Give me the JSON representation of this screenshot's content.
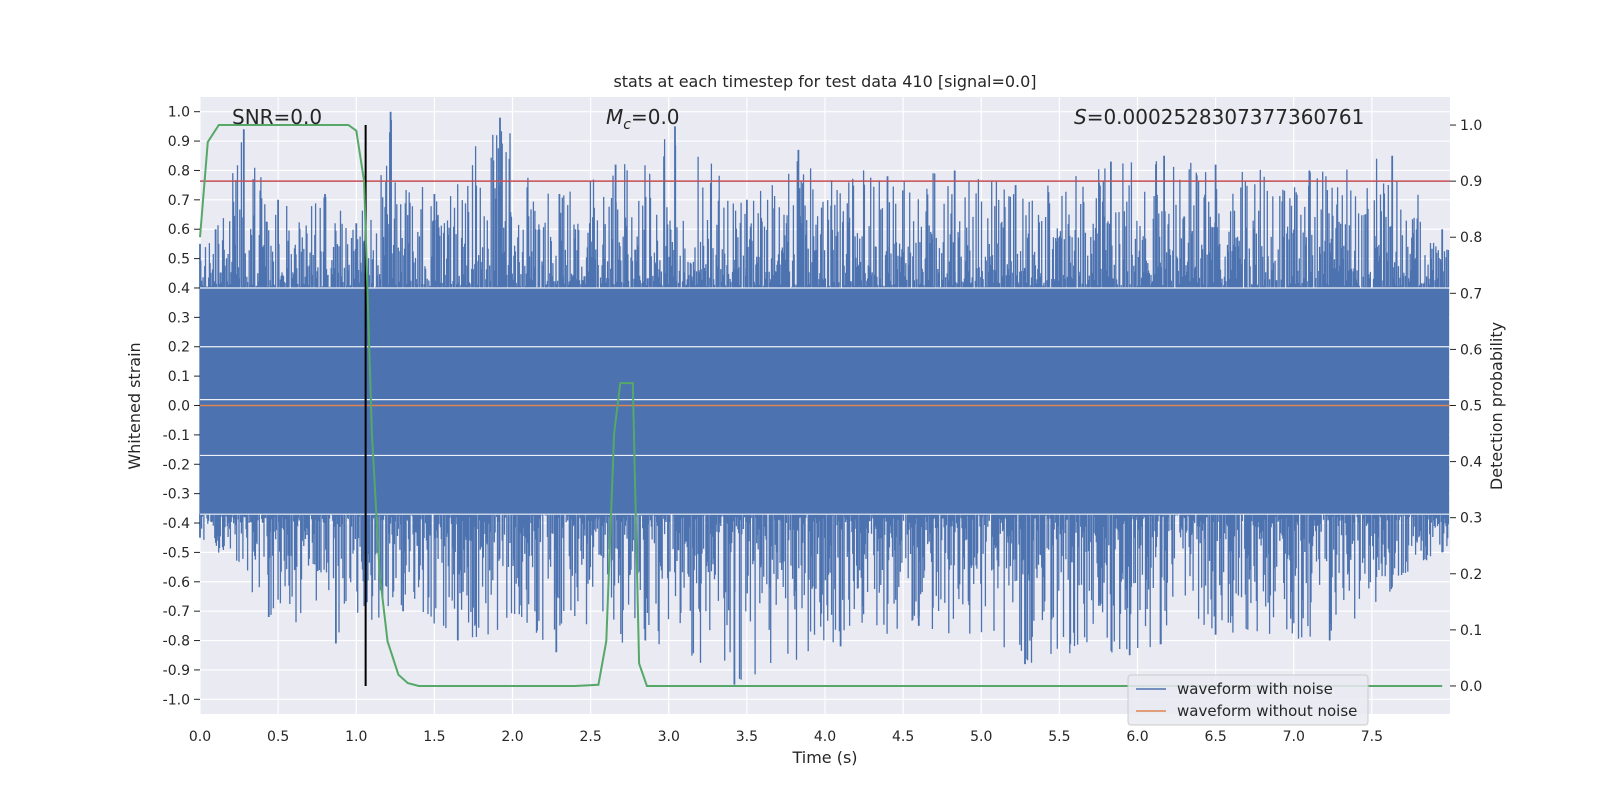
{
  "chart_data": {
    "type": "line",
    "title": "stats at each timestep for test data 410 [signal=0.0]",
    "xlabel": "Time (s)",
    "ylabel": "Whitened strain",
    "y2label": "Detection probability",
    "xlim": [
      0.0,
      8.0
    ],
    "ylim": [
      -1.05,
      1.05
    ],
    "y2lim": [
      -0.05,
      1.05
    ],
    "xticks": [
      0.0,
      0.5,
      1.0,
      1.5,
      2.0,
      2.5,
      3.0,
      3.5,
      4.0,
      4.5,
      5.0,
      5.5,
      6.0,
      6.5,
      7.0,
      7.5
    ],
    "xtick_labels": [
      "0.0",
      "0.5",
      "1.0",
      "1.5",
      "2.0",
      "2.5",
      "3.0",
      "3.5",
      "4.0",
      "4.5",
      "5.0",
      "5.5",
      "6.0",
      "6.5",
      "7.0",
      "7.5"
    ],
    "yticks": [
      1.0,
      0.9,
      0.8,
      0.7,
      0.6,
      0.5,
      0.4,
      0.3,
      0.2,
      0.1,
      0.0,
      -0.1,
      -0.2,
      -0.3,
      -0.4,
      -0.5,
      -0.6,
      -0.7,
      -0.8,
      -0.9,
      -1.0
    ],
    "ytick_labels": [
      "1.0",
      "0.9",
      "0.8",
      "0.7",
      "0.6",
      "0.5",
      "0.4",
      "0.3",
      "0.2",
      "0.1",
      "0.0",
      "-0.1",
      "-0.2",
      "-0.3",
      "-0.4",
      "-0.5",
      "-0.6",
      "-0.7",
      "-0.8",
      "-0.9",
      "-1.0"
    ],
    "y2ticks": [
      1.0,
      0.9,
      0.8,
      0.7,
      0.6,
      0.5,
      0.4,
      0.3,
      0.2,
      0.1,
      0.0
    ],
    "y2tick_labels": [
      "1.0",
      "0.9",
      "0.8",
      "0.7",
      "0.6",
      "0.5",
      "0.4",
      "0.3",
      "0.2",
      "0.1",
      "0.0"
    ],
    "grid": true,
    "annotations": {
      "snr": "SNR=0.0",
      "mc_symbol": "M",
      "mc_subscript": "c",
      "mc_value": "=0.0",
      "s_symbol": "S",
      "s_value": "=0.0002528307377360761"
    },
    "series": [
      {
        "name": "waveform with noise",
        "axis": "left",
        "color": "#4c72b0",
        "description_kind": "noise",
        "envelope_upper": [
          [
            0.0,
            0.55
          ],
          [
            0.1,
            0.6
          ],
          [
            0.28,
            0.94
          ],
          [
            0.5,
            0.7
          ],
          [
            0.8,
            0.72
          ],
          [
            1.0,
            0.62
          ],
          [
            1.22,
            1.0
          ],
          [
            1.5,
            0.72
          ],
          [
            1.92,
            0.98
          ],
          [
            2.3,
            0.72
          ],
          [
            2.66,
            0.82
          ],
          [
            3.04,
            0.95
          ],
          [
            3.5,
            0.7
          ],
          [
            3.83,
            0.87
          ],
          [
            4.4,
            0.78
          ],
          [
            4.83,
            0.8
          ],
          [
            5.22,
            0.75
          ],
          [
            5.83,
            0.83
          ],
          [
            6.17,
            0.85
          ],
          [
            6.5,
            0.82
          ],
          [
            7.1,
            0.8
          ],
          [
            7.63,
            0.85
          ],
          [
            7.95,
            0.6
          ]
        ],
        "envelope_lower": [
          [
            0.0,
            -0.45
          ],
          [
            0.44,
            -0.72
          ],
          [
            0.87,
            -0.81
          ],
          [
            1.3,
            -0.7
          ],
          [
            1.65,
            -0.8
          ],
          [
            2.28,
            -0.84
          ],
          [
            2.85,
            -0.8
          ],
          [
            3.42,
            -0.95
          ],
          [
            4.1,
            -0.82
          ],
          [
            4.6,
            -0.75
          ],
          [
            5.28,
            -0.88
          ],
          [
            5.95,
            -0.85
          ],
          [
            6.5,
            -0.78
          ],
          [
            7.23,
            -0.8
          ],
          [
            7.95,
            -0.5
          ]
        ]
      },
      {
        "name": "waveform without noise",
        "axis": "left",
        "color": "#dd8452",
        "x": [
          0.0,
          8.0
        ],
        "y": [
          0.0,
          0.0
        ]
      },
      {
        "name": "detection probability",
        "axis": "right",
        "color": "#55a868",
        "x": [
          0.0,
          0.05,
          0.12,
          0.2,
          0.4,
          0.6,
          0.8,
          0.95,
          1.0,
          1.05,
          1.1,
          1.15,
          1.2,
          1.27,
          1.33,
          1.4,
          1.6,
          2.0,
          2.4,
          2.55,
          2.6,
          2.65,
          2.69,
          2.77,
          2.81,
          2.86,
          3.0,
          4.0,
          5.0,
          6.0,
          7.0,
          7.95
        ],
        "y": [
          0.8,
          0.97,
          1.0,
          1.0,
          1.0,
          1.0,
          1.0,
          1.0,
          0.99,
          0.9,
          0.45,
          0.2,
          0.08,
          0.02,
          0.005,
          0.0,
          0.0,
          0.0,
          0.0,
          0.002,
          0.08,
          0.45,
          0.54,
          0.54,
          0.04,
          0.0,
          0.0,
          0.0,
          0.0,
          0.0,
          0.0,
          0.0
        ]
      }
    ],
    "threshold": {
      "value": 0.9,
      "axis": "right",
      "color": "#c44e52"
    },
    "marker": {
      "x": 1.06,
      "color": "#000000"
    },
    "legend": {
      "placement": "lower-right",
      "entries": [
        {
          "label": "waveform with noise",
          "color": "#4c72b0"
        },
        {
          "label": "waveform without noise",
          "color": "#dd8452"
        }
      ]
    },
    "colors": {
      "axes_bg": "#eaeaf2",
      "grid": "#ffffff",
      "text": "#262626"
    }
  }
}
